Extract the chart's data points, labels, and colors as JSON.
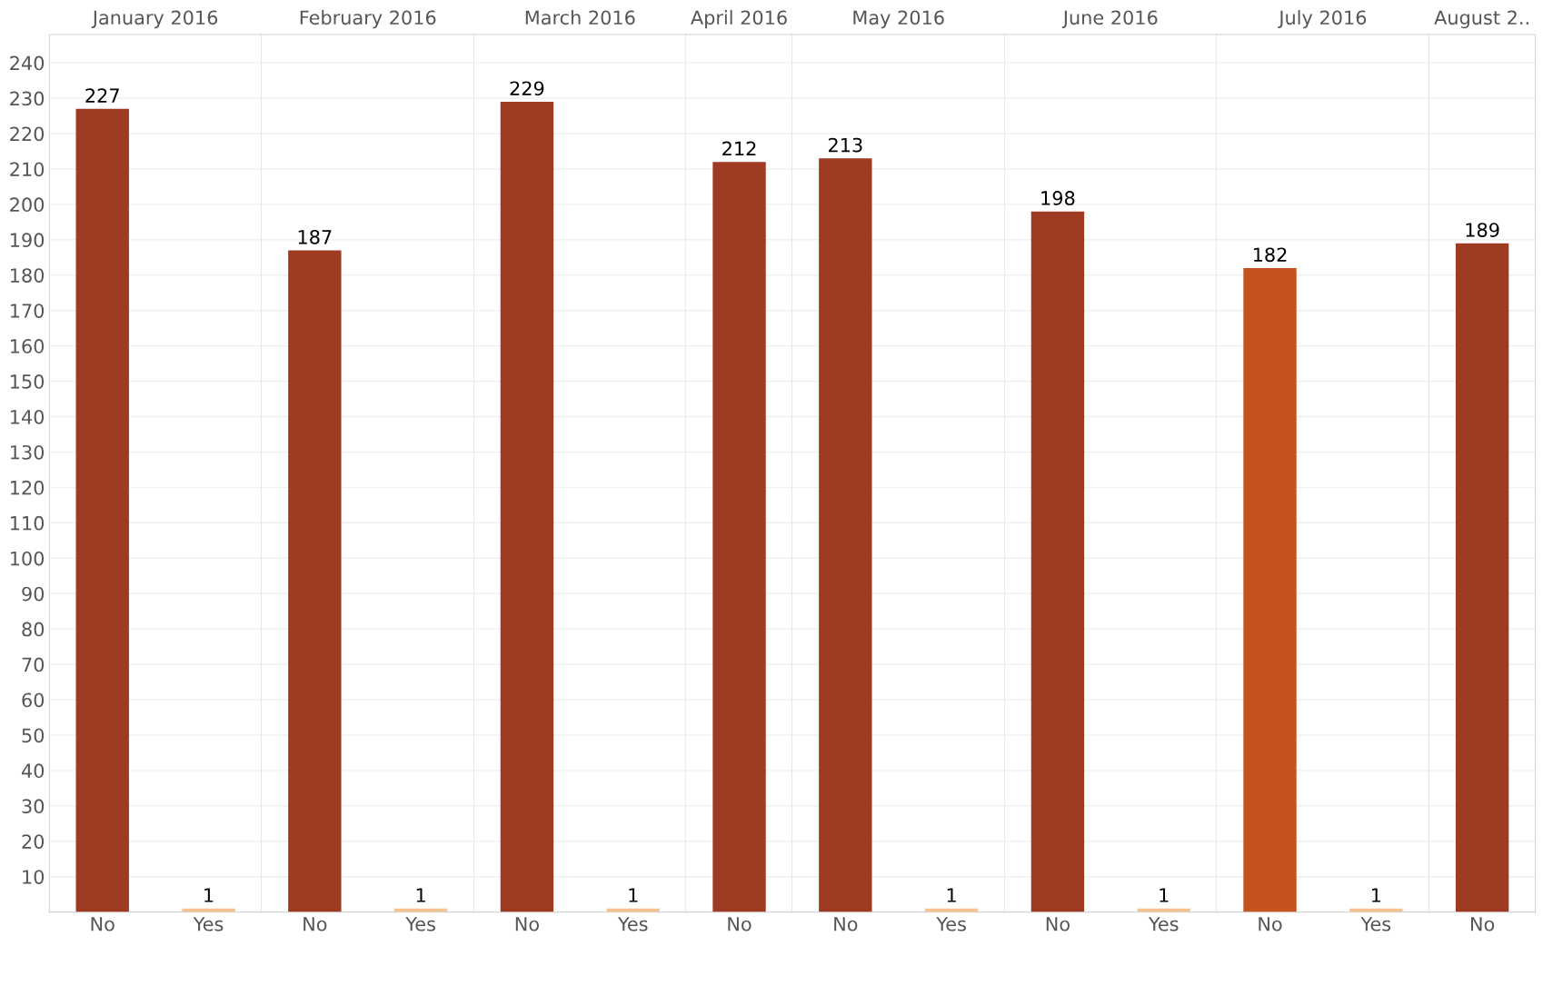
{
  "chart_data": [
    {
      "type": "bar",
      "title": "January 2016",
      "categories": [
        "No",
        "Yes"
      ],
      "values": [
        227,
        1
      ],
      "colors": [
        "#9e3b22",
        "#f5c38f"
      ],
      "data_labels": true,
      "ylim": [
        0,
        248
      ],
      "yticks": [
        10,
        20,
        30,
        40,
        50,
        60,
        70,
        80,
        90,
        100,
        110,
        120,
        130,
        140,
        150,
        160,
        170,
        180,
        190,
        200,
        210,
        220,
        230,
        240
      ],
      "grid": "y"
    },
    {
      "type": "bar",
      "title": "February 2016",
      "categories": [
        "No",
        "Yes"
      ],
      "values": [
        187,
        1
      ],
      "colors": [
        "#9e3b22",
        "#f5c38f"
      ],
      "data_labels": true,
      "ylim": [
        0,
        248
      ],
      "grid": "y",
      "tick_labels": "x"
    },
    {
      "type": "bar",
      "title": "March 2016",
      "categories": [
        "No",
        "Yes"
      ],
      "values": [
        229,
        1
      ],
      "colors": [
        "#9e3b22",
        "#f5c38f"
      ],
      "data_labels": true,
      "ylim": [
        0,
        248
      ],
      "grid": "y",
      "tick_labels": "x"
    },
    {
      "type": "bar",
      "title": "April 2016",
      "categories": [
        "No"
      ],
      "values": [
        212
      ],
      "colors": [
        "#9e3b22"
      ],
      "data_labels": true,
      "ylim": [
        0,
        248
      ],
      "grid": "y",
      "tick_labels": "x"
    },
    {
      "type": "bar",
      "title": "May 2016",
      "categories": [
        "No",
        "Yes"
      ],
      "values": [
        213,
        1
      ],
      "colors": [
        "#9e3b22",
        "#f5c38f"
      ],
      "data_labels": true,
      "ylim": [
        0,
        248
      ],
      "grid": "y",
      "tick_labels": "x"
    },
    {
      "type": "bar",
      "title": "June 2016",
      "categories": [
        "No",
        "Yes"
      ],
      "values": [
        198,
        1
      ],
      "colors": [
        "#9e3b22",
        "#f5c38f"
      ],
      "data_labels": true,
      "ylim": [
        0,
        248
      ],
      "grid": "y",
      "tick_labels": "x"
    },
    {
      "type": "bar",
      "title": "July 2016",
      "categories": [
        "No",
        "Yes"
      ],
      "values": [
        182,
        1
      ],
      "colors": [
        "#c5531f",
        "#f5c38f"
      ],
      "data_labels": true,
      "ylim": [
        0,
        248
      ],
      "grid": "y",
      "tick_labels": "x"
    },
    {
      "type": "bar",
      "title": "August 2..",
      "categories": [
        "No"
      ],
      "values": [
        189
      ],
      "colors": [
        "#9e3b22"
      ],
      "data_labels": true,
      "ylim": [
        0,
        248
      ],
      "grid": "y",
      "tick_labels": "x"
    }
  ]
}
